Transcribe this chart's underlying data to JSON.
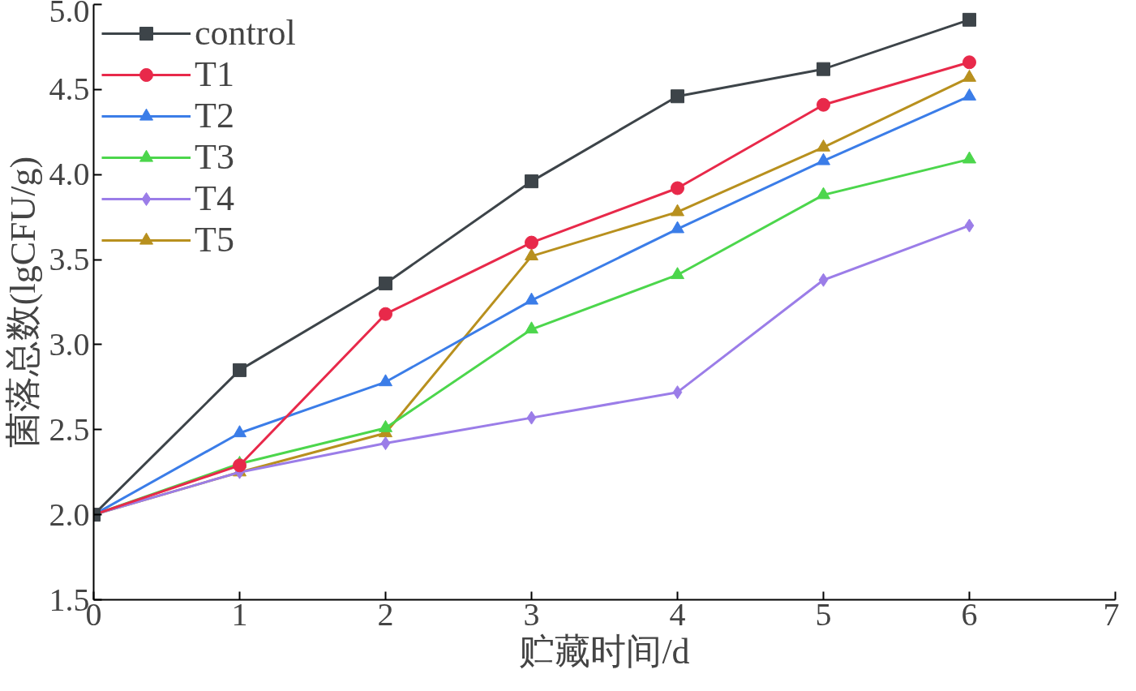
{
  "chart_data": {
    "type": "line",
    "xlabel": "贮藏时间/d",
    "ylabel": "菌落总数(lgCFU/g)",
    "x": [
      0,
      1,
      2,
      3,
      4,
      5,
      6
    ],
    "xlim": [
      0,
      7
    ],
    "xticks": [
      0,
      1,
      2,
      3,
      4,
      5,
      6,
      7
    ],
    "ylim": [
      1.5,
      5.0
    ],
    "yticks": [
      {
        "value": 1.5,
        "label": "1.5"
      },
      {
        "value": 2.0,
        "label": "2.0"
      },
      {
        "value": 2.5,
        "label": "2.5"
      },
      {
        "value": 3.0,
        "label": "3.0"
      },
      {
        "value": 3.5,
        "label": "3.5"
      },
      {
        "value": 4.0,
        "label": "4.0"
      },
      {
        "value": 4.5,
        "label": "4.5"
      },
      {
        "value": 5.0,
        "label": "5.0"
      }
    ],
    "grid": false,
    "legend": "top left",
    "line_style": "solid",
    "series": [
      {
        "name": "control",
        "color": "#3d4449",
        "marker": "square",
        "values": [
          2.0,
          2.85,
          3.36,
          3.96,
          4.46,
          4.62,
          4.91
        ]
      },
      {
        "name": "T1",
        "color": "#e8294a",
        "marker": "circle",
        "values": [
          2.0,
          2.29,
          3.18,
          3.6,
          3.92,
          4.41,
          4.66
        ]
      },
      {
        "name": "T2",
        "color": "#3b7de8",
        "marker": "triangle",
        "values": [
          2.0,
          2.48,
          2.78,
          3.26,
          3.68,
          4.08,
          4.46
        ]
      },
      {
        "name": "T3",
        "color": "#4cd64c",
        "marker": "triangle",
        "values": [
          2.0,
          2.3,
          2.51,
          3.09,
          3.41,
          3.88,
          4.09
        ]
      },
      {
        "name": "T4",
        "color": "#9b7de8",
        "marker": "diamond",
        "values": [
          2.0,
          2.25,
          2.42,
          2.57,
          2.72,
          3.38,
          3.7
        ]
      },
      {
        "name": "T5",
        "color": "#b8901e",
        "marker": "triangle",
        "values": [
          2.0,
          2.25,
          2.48,
          3.52,
          3.78,
          4.16,
          4.57
        ]
      }
    ]
  }
}
